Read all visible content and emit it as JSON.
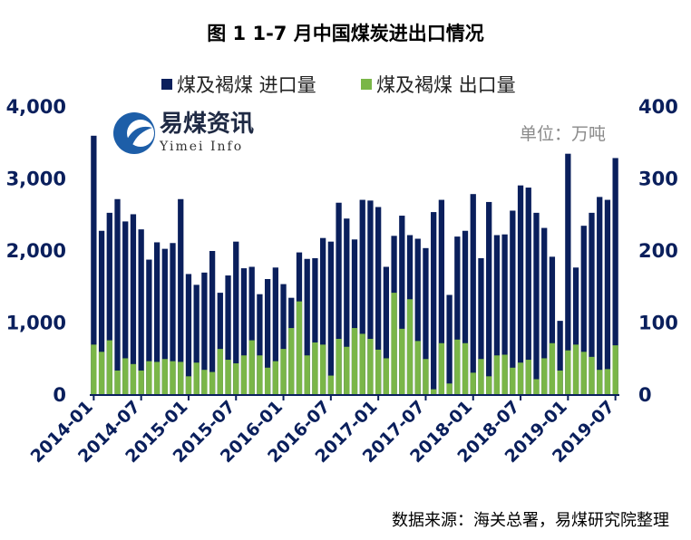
{
  "chart_data": {
    "type": "bar",
    "title": "图 1 1-7 月中国煤炭进出口情况",
    "unit": "单位：万吨",
    "source": "数据来源：海关总署，易煤研究院整理",
    "logo": {
      "cn": "易煤资讯",
      "en": "Yimei Info"
    },
    "legend_position": "top",
    "left_axis": {
      "ylim": [
        0,
        4000
      ],
      "ticks": [
        "0",
        "1,000",
        "2,000",
        "3,000",
        "4,000"
      ]
    },
    "right_axis": {
      "ylim": [
        0,
        400
      ],
      "ticks": [
        "0",
        "100",
        "200",
        "300",
        "400"
      ]
    },
    "x_tick_labels": [
      "2014-01",
      "2014-07",
      "2015-01",
      "2015-07",
      "2016-01",
      "2016-07",
      "2017-01",
      "2017-07",
      "2018-01",
      "2018-07",
      "2019-01",
      "2019-07"
    ],
    "colors": {
      "imports": "#0a1f5c",
      "exports": "#7ab648",
      "axis": "#0a1f5c"
    },
    "categories": [
      "2014-01",
      "2014-02",
      "2014-03",
      "2014-04",
      "2014-05",
      "2014-06",
      "2014-07",
      "2014-08",
      "2014-09",
      "2014-10",
      "2014-11",
      "2014-12",
      "2015-01",
      "2015-02",
      "2015-03",
      "2015-04",
      "2015-05",
      "2015-06",
      "2015-07",
      "2015-08",
      "2015-09",
      "2015-10",
      "2015-11",
      "2015-12",
      "2016-01",
      "2016-02",
      "2016-03",
      "2016-04",
      "2016-05",
      "2016-06",
      "2016-07",
      "2016-08",
      "2016-09",
      "2016-10",
      "2016-11",
      "2016-12",
      "2017-01",
      "2017-02",
      "2017-03",
      "2017-04",
      "2017-05",
      "2017-06",
      "2017-07",
      "2017-08",
      "2017-09",
      "2017-10",
      "2017-11",
      "2017-12",
      "2018-01",
      "2018-02",
      "2018-03",
      "2018-04",
      "2018-05",
      "2018-06",
      "2018-07",
      "2018-08",
      "2018-09",
      "2018-10",
      "2018-11",
      "2018-12",
      "2019-01",
      "2019-02",
      "2019-03",
      "2019-04",
      "2019-05",
      "2019-06",
      "2019-07"
    ],
    "series": [
      {
        "name": "煤及褐煤 进口量",
        "axis": "left",
        "values": [
          3600,
          2280,
          2530,
          2720,
          2410,
          2510,
          2300,
          1880,
          2120,
          2030,
          2110,
          2720,
          1680,
          1530,
          1700,
          2000,
          1420,
          1660,
          2130,
          1760,
          1780,
          1400,
          1610,
          1770,
          1540,
          1350,
          1980,
          1890,
          1900,
          2180,
          2130,
          2670,
          2450,
          2160,
          2710,
          2700,
          2610,
          1780,
          2210,
          2490,
          2220,
          2170,
          2040,
          2540,
          2710,
          1390,
          2200,
          2280,
          2790,
          1900,
          2680,
          2220,
          2230,
          2560,
          2910,
          2880,
          2530,
          2320,
          1920,
          1030,
          3350,
          1770,
          2350,
          2530,
          2750,
          2710,
          3290
        ]
      },
      {
        "name": "煤及褐煤 出口量",
        "axis": "right",
        "values": [
          70,
          60,
          76,
          34,
          51,
          43,
          34,
          47,
          46,
          50,
          47,
          46,
          26,
          45,
          35,
          32,
          64,
          49,
          44,
          55,
          76,
          55,
          38,
          47,
          64,
          93,
          130,
          55,
          73,
          70,
          27,
          78,
          67,
          93,
          85,
          78,
          63,
          51,
          142,
          92,
          133,
          75,
          50,
          8,
          72,
          16,
          77,
          72,
          31,
          50,
          26,
          55,
          56,
          38,
          45,
          49,
          22,
          51,
          72,
          34,
          62,
          70,
          60,
          53,
          35,
          36,
          69
        ]
      }
    ]
  }
}
